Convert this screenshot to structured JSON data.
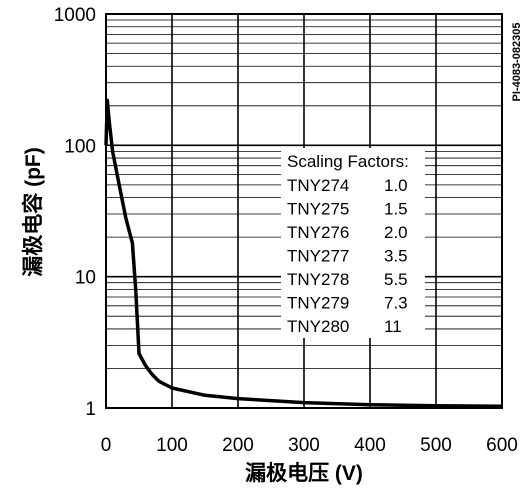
{
  "chart_data": {
    "type": "line",
    "xlabel": "漏极电压 (V)",
    "ylabel": "漏极电容 (pF)",
    "y_scale": "log",
    "xlim": [
      0,
      600
    ],
    "ylim": [
      1,
      1000
    ],
    "grid": true,
    "x_ticks": [
      "0",
      "100",
      "200",
      "300",
      "400",
      "500",
      "600"
    ],
    "y_ticks": [
      "1",
      "10",
      "100",
      "1000"
    ],
    "watermark": "PI-4083-082305",
    "series": [
      {
        "x": [
          0,
          2,
          5,
          10,
          20,
          30,
          40,
          45,
          50,
          60,
          70,
          80,
          100,
          150,
          200,
          300,
          400,
          500,
          600
        ],
        "y": [
          100,
          220,
          150,
          90,
          50,
          28,
          18,
          8,
          2.6,
          2.1,
          1.8,
          1.6,
          1.42,
          1.25,
          1.18,
          1.1,
          1.06,
          1.04,
          1.03
        ]
      }
    ],
    "legend_box": {
      "title": "Scaling Factors:",
      "rows": [
        {
          "part": "TNY274",
          "factor": "1.0"
        },
        {
          "part": "TNY275",
          "factor": "1.5"
        },
        {
          "part": "TNY276",
          "factor": "2.0"
        },
        {
          "part": "TNY277",
          "factor": "3.5"
        },
        {
          "part": "TNY278",
          "factor": "5.5"
        },
        {
          "part": "TNY279",
          "factor": "7.3"
        },
        {
          "part": "TNY280",
          "factor": "11"
        }
      ]
    }
  }
}
